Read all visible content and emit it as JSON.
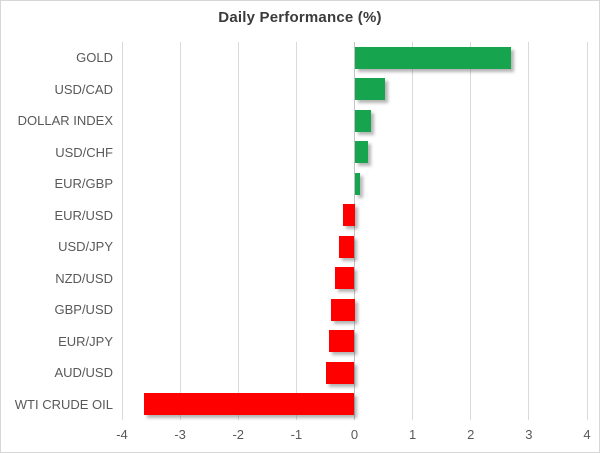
{
  "chart_data": {
    "type": "bar",
    "orientation": "horizontal",
    "title": "Daily Performance (%)",
    "categories": [
      "GOLD",
      "USD/CAD",
      "DOLLAR INDEX",
      "USD/CHF",
      "EUR/GBP",
      "EUR/USD",
      "USD/JPY",
      "NZD/USD",
      "GBP/USD",
      "EUR/JPY",
      "AUD/USD",
      "WTI CRUDE OIL"
    ],
    "values": [
      2.7,
      0.53,
      0.28,
      0.24,
      0.09,
      -0.2,
      -0.27,
      -0.34,
      -0.4,
      -0.44,
      -0.49,
      -3.63
    ],
    "xlabel": "",
    "ylabel": "",
    "xlim": [
      -4,
      4
    ],
    "xticks": [
      -4,
      -3,
      -2,
      -1,
      0,
      1,
      2,
      3,
      4
    ],
    "grid": true,
    "legend": "none",
    "positive_color": "#16a54e",
    "negative_color": "#fe0000",
    "gridline_color": "#d9d9d9",
    "label_color": "#595959",
    "title_color": "#3b3b3b"
  }
}
